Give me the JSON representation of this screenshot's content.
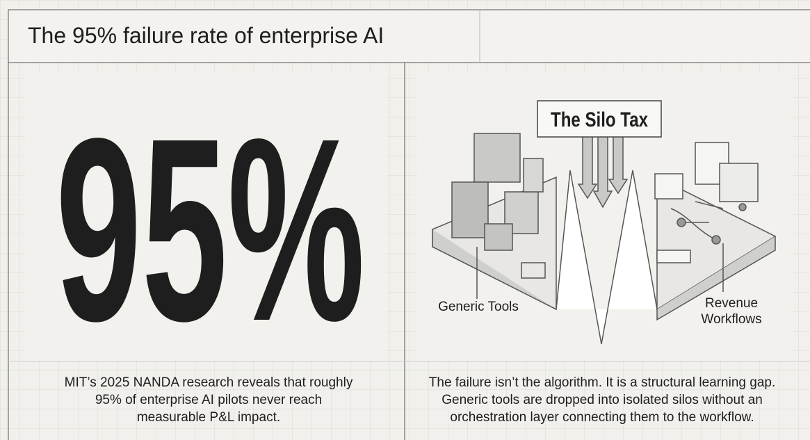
{
  "header": {
    "title": "The 95% failure rate of enterprise AI"
  },
  "left": {
    "stat": "95%",
    "caption": [
      "MIT’s 2025 NANDA research reveals that roughly",
      "95% of enterprise AI pilots never reach",
      "measurable P&L impact."
    ]
  },
  "right": {
    "callout": "The Silo Tax",
    "labels": {
      "left": "Generic Tools",
      "right": [
        "Revenue",
        "Workflows"
      ]
    },
    "caption": [
      "The failure isn’t the algorithm. It is a structural learning gap.",
      "Generic tools are dropped into isolated silos without an",
      "orchestration layer connecting them to the workflow."
    ]
  }
}
